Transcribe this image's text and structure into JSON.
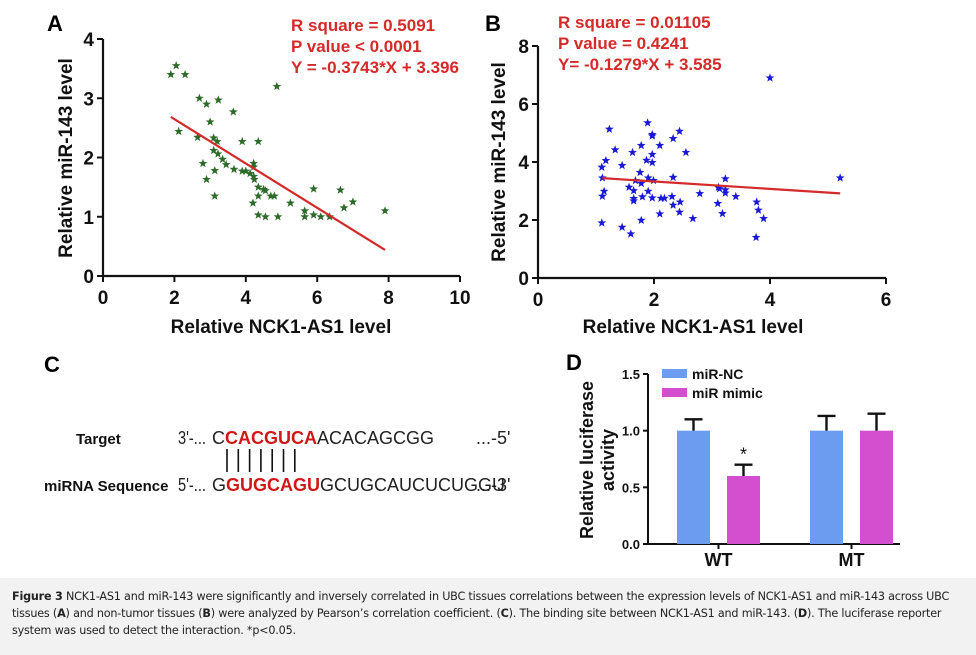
{
  "figure": {
    "panels": {
      "A": "A",
      "B": "B",
      "C": "C",
      "D": "D"
    }
  },
  "chart_data": [
    {
      "id": "A",
      "type": "scatter",
      "title": "",
      "xlabel": "Relative NCK1-AS1 level",
      "ylabel": "Relative miR-143 level",
      "xlim": [
        0,
        10
      ],
      "ylim": [
        0,
        4
      ],
      "xticks": [
        "0",
        "2",
        "4",
        "6",
        "8",
        "10"
      ],
      "yticks": [
        "0",
        "1",
        "2",
        "3",
        "4"
      ],
      "marker": "star",
      "marker_color": "#2e6b2a",
      "line_color": "#d42a2a",
      "annotations": [
        "R square = 0.5091",
        "P value < 0.0001",
        "Y = -0.3743*X + 3.396"
      ],
      "regression": {
        "slope": -0.3743,
        "intercept": 3.396,
        "x_range": [
          1.9,
          7.9
        ]
      },
      "points": [
        [
          1.9,
          3.4
        ],
        [
          2.05,
          3.55
        ],
        [
          2.3,
          3.4
        ],
        [
          4.87,
          3.2
        ],
        [
          2.7,
          3.0
        ],
        [
          2.9,
          2.9
        ],
        [
          3.23,
          2.97
        ],
        [
          3.65,
          2.77
        ],
        [
          3.0,
          2.6
        ],
        [
          2.12,
          2.44
        ],
        [
          2.65,
          2.34
        ],
        [
          3.1,
          2.33
        ],
        [
          3.2,
          2.27
        ],
        [
          3.9,
          2.27
        ],
        [
          4.35,
          2.27
        ],
        [
          3.1,
          2.12
        ],
        [
          3.22,
          2.06
        ],
        [
          3.35,
          1.97
        ],
        [
          3.45,
          1.88
        ],
        [
          2.8,
          1.9
        ],
        [
          3.67,
          1.8
        ],
        [
          3.13,
          1.78
        ],
        [
          3.9,
          1.77
        ],
        [
          4.0,
          1.77
        ],
        [
          4.12,
          1.73
        ],
        [
          4.22,
          1.9
        ],
        [
          4.22,
          1.84
        ],
        [
          4.22,
          1.68
        ],
        [
          4.24,
          1.63
        ],
        [
          2.9,
          1.63
        ],
        [
          4.35,
          1.5
        ],
        [
          4.5,
          1.46
        ],
        [
          4.55,
          1.44
        ],
        [
          4.35,
          1.35
        ],
        [
          4.7,
          1.35
        ],
        [
          4.8,
          1.35
        ],
        [
          3.13,
          1.35
        ],
        [
          4.2,
          1.23
        ],
        [
          5.25,
          1.23
        ],
        [
          4.35,
          1.03
        ],
        [
          4.55,
          1.0
        ],
        [
          4.9,
          1.0
        ],
        [
          5.65,
          1.1
        ],
        [
          5.65,
          1.0
        ],
        [
          5.9,
          1.47
        ],
        [
          5.9,
          1.03
        ],
        [
          6.1,
          1.0
        ],
        [
          6.35,
          1.0
        ],
        [
          6.65,
          1.45
        ],
        [
          6.75,
          1.15
        ],
        [
          7.0,
          1.25
        ],
        [
          7.9,
          1.1
        ]
      ]
    },
    {
      "id": "B",
      "type": "scatter",
      "title": "",
      "xlabel": "Relative NCK1-AS1 level",
      "ylabel": "Relative miR-143 level",
      "xlim": [
        0,
        6
      ],
      "ylim": [
        0,
        8
      ],
      "xticks": [
        "0",
        "2",
        "4",
        "6"
      ],
      "yticks": [
        "0",
        "2",
        "4",
        "6",
        "8"
      ],
      "marker": "star",
      "marker_color": "#1a1ad6",
      "line_color": "#d42a2a",
      "annotations": [
        "R square = 0.01105",
        "P value = 0.4241",
        "Y= -0.1279*X + 3.585"
      ],
      "regression": {
        "slope": -0.1279,
        "intercept": 3.585,
        "x_range": [
          1.11,
          5.21
        ]
      },
      "points": [
        [
          1.1,
          1.9
        ],
        [
          1.11,
          2.82
        ],
        [
          1.14,
          2.99
        ],
        [
          1.11,
          3.45
        ],
        [
          1.1,
          3.82
        ],
        [
          1.17,
          4.05
        ],
        [
          1.23,
          5.13
        ],
        [
          1.33,
          4.42
        ],
        [
          1.45,
          3.88
        ],
        [
          1.45,
          1.75
        ],
        [
          1.6,
          1.52
        ],
        [
          1.57,
          3.13
        ],
        [
          1.63,
          4.33
        ],
        [
          1.65,
          3.01
        ],
        [
          1.65,
          2.74
        ],
        [
          1.65,
          2.66
        ],
        [
          1.68,
          3.36
        ],
        [
          1.76,
          3.64
        ],
        [
          1.78,
          4.57
        ],
        [
          1.78,
          3.26
        ],
        [
          1.8,
          2.8
        ],
        [
          1.78,
          1.99
        ],
        [
          1.87,
          4.06
        ],
        [
          1.89,
          5.35
        ],
        [
          1.9,
          3.45
        ],
        [
          1.9,
          2.99
        ],
        [
          1.97,
          4.95
        ],
        [
          1.97,
          4.9
        ],
        [
          1.97,
          4.26
        ],
        [
          1.97,
          3.98
        ],
        [
          1.99,
          3.36
        ],
        [
          1.97,
          2.76
        ],
        [
          2.1,
          4.57
        ],
        [
          2.1,
          2.21
        ],
        [
          2.12,
          2.75
        ],
        [
          2.18,
          2.75
        ],
        [
          2.33,
          4.81
        ],
        [
          2.33,
          3.47
        ],
        [
          2.31,
          2.81
        ],
        [
          2.33,
          2.51
        ],
        [
          2.44,
          5.06
        ],
        [
          2.45,
          2.62
        ],
        [
          2.44,
          2.27
        ],
        [
          2.55,
          4.33
        ],
        [
          2.67,
          2.05
        ],
        [
          2.79,
          2.91
        ],
        [
          3.11,
          3.13
        ],
        [
          3.13,
          3.08
        ],
        [
          3.1,
          2.57
        ],
        [
          3.18,
          2.22
        ],
        [
          3.23,
          3.42
        ],
        [
          3.23,
          3.04
        ],
        [
          3.23,
          2.93
        ],
        [
          3.41,
          2.81
        ],
        [
          3.77,
          2.62
        ],
        [
          3.8,
          2.34
        ],
        [
          3.89,
          2.05
        ],
        [
          3.76,
          1.4
        ],
        [
          4.0,
          6.9
        ],
        [
          5.21,
          3.45
        ]
      ]
    },
    {
      "id": "D",
      "type": "bar",
      "title": "",
      "xlabel": "",
      "ylabel_lines": [
        "Relative luciferase",
        "activity"
      ],
      "ylim": [
        0,
        1.5
      ],
      "yticks": [
        "0.0",
        "0.5",
        "1.0",
        "1.5"
      ],
      "categories": [
        "WT",
        "MT"
      ],
      "series": [
        {
          "name": "miR-NC",
          "color": "#6b9cf0",
          "values": [
            1.0,
            1.0
          ],
          "errors": [
            0.1,
            0.13
          ]
        },
        {
          "name": "miR mimic",
          "color": "#d44fcf",
          "values": [
            0.6,
            1.0
          ],
          "errors": [
            0.1,
            0.15
          ]
        }
      ],
      "significance": [
        {
          "category": "WT",
          "series": "miR mimic",
          "label": "*"
        }
      ],
      "legend": "top-left"
    }
  ],
  "binding_site": {
    "target_label": "Target",
    "mirna_label": "miRNA Sequence",
    "target": {
      "prefix": "3'-...",
      "lead": "C",
      "seed": "CACGUCA",
      "rest": "ACACAGCGG",
      "suffix": "...-5'"
    },
    "mirna": {
      "prefix": "5'-...",
      "lead": "G",
      "seed": "GUGCAGU",
      "rest": "GCUGCAUCUCUGGU",
      "suffix": "...-3'"
    },
    "pair_count": 7,
    "seed_color": "#d01818"
  },
  "caption": {
    "label": "Figure 3",
    "part1": " NCK1-AS1 and miR-143 were significantly and inversely correlated in UBC tissues correlations between the expression levels of NCK1-AS1 and miR-143 across UBC tissues (",
    "refA": "A",
    "part2": ") and non-tumor tissues (",
    "refB": "B",
    "part3": ") were analyzed by Pearson’s correlation coefficient. (",
    "refC": "C",
    "part4": "). The binding site between NCK1-AS1 and miR-143. (",
    "refD": "D",
    "part5": "). The luciferase reporter system was used to detect the interaction. *p<0.05."
  }
}
